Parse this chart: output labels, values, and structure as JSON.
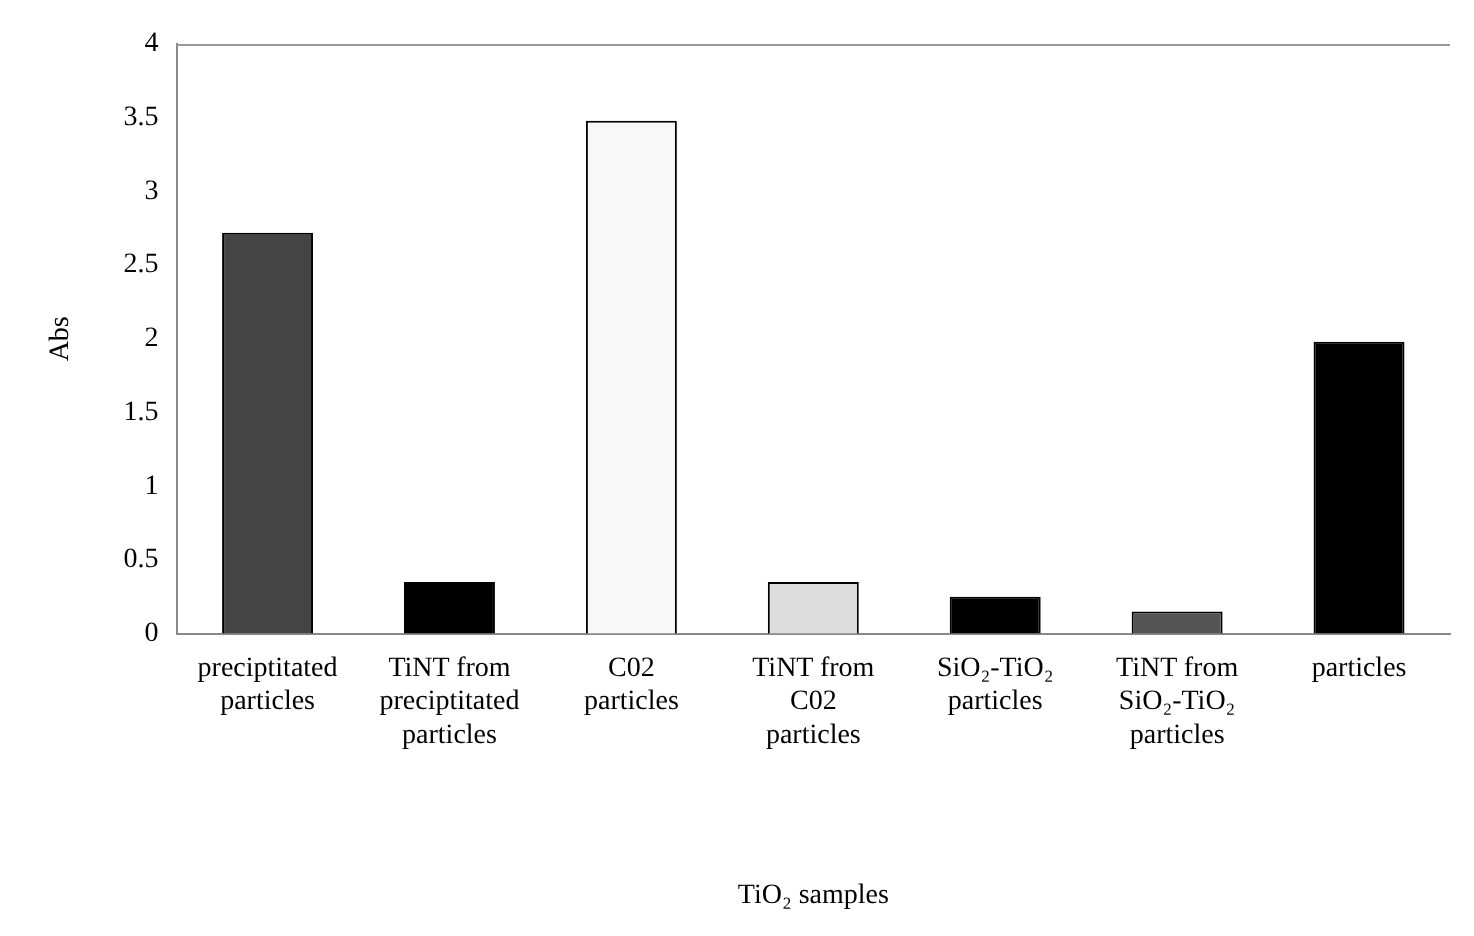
{
  "chart_data": {
    "type": "bar",
    "xlabel": "TiO₂ samples",
    "ylabel": "Abs",
    "categories": [
      "preciptitated\nparticles",
      "TiNT from\npreciptitated\nparticles",
      "C02\nparticles",
      "TiNT from\nC02\nparticles",
      "SiO₂-TiO₂\nparticles",
      "TiNT from\nSiO₂-TiO₂\nparticles",
      "particles"
    ],
    "values": [
      2.72,
      0.35,
      3.48,
      0.35,
      0.25,
      0.15,
      1.98
    ],
    "colors": [
      "#444444",
      "#000000",
      "#f8f8f8",
      "#dddddd",
      "#000000",
      "#555555",
      "#000000"
    ],
    "ylim": [
      0,
      4
    ],
    "yticks": [
      0,
      0.5,
      1,
      1.5,
      2,
      2.5,
      3,
      3.5,
      4
    ],
    "grid": false,
    "legend": false
  }
}
